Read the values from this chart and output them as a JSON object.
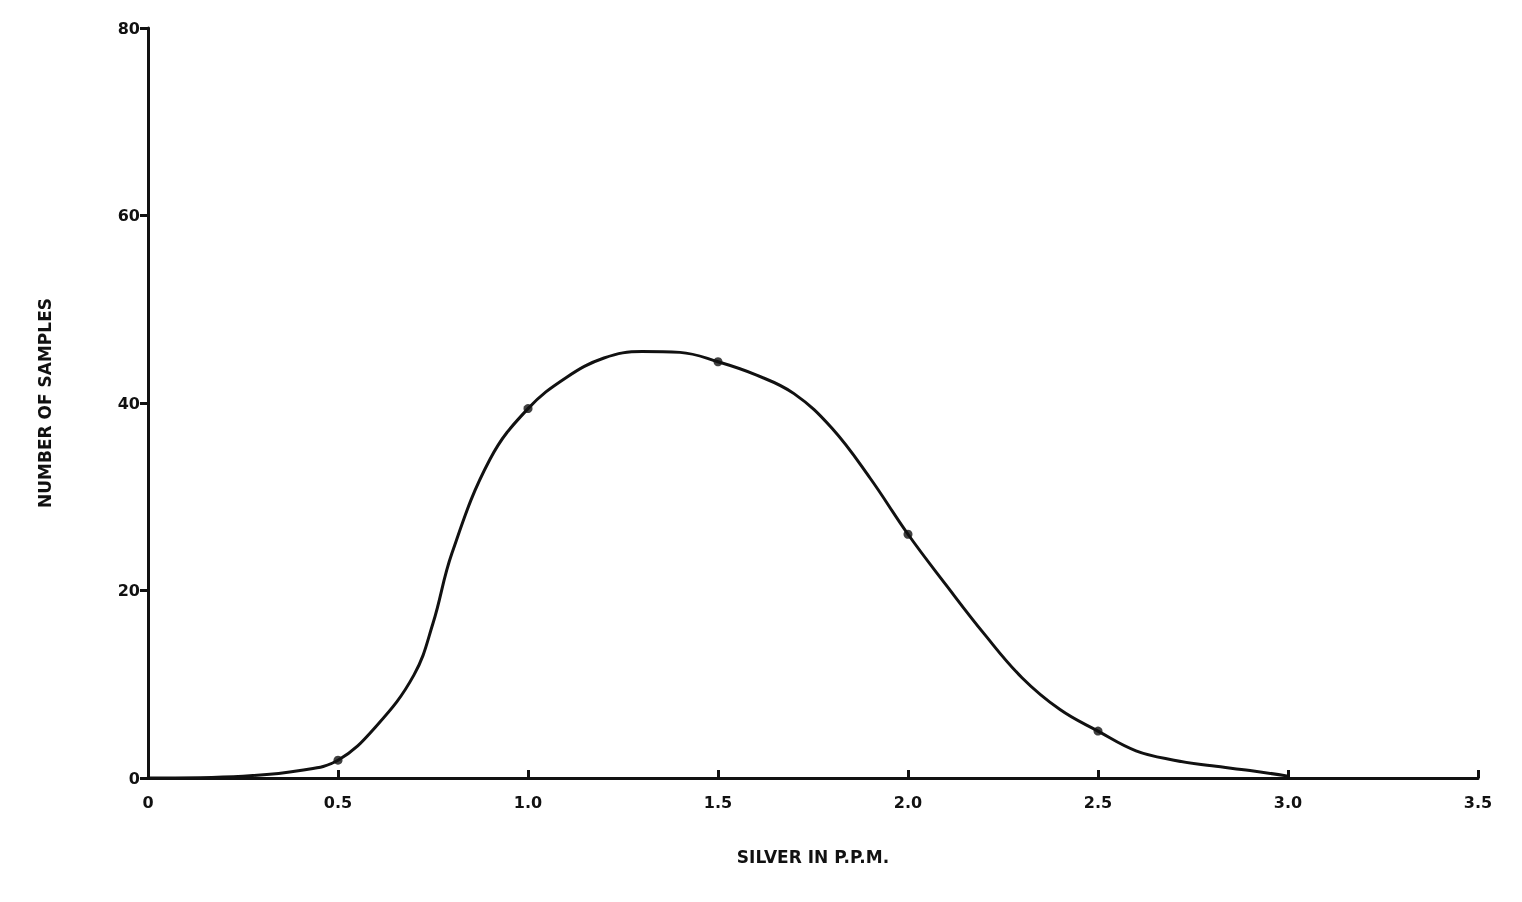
{
  "chart_data": {
    "type": "line",
    "xlabel": "SILVER IN P.P.M.",
    "ylabel": "NUMBER OF SAMPLES",
    "series": [
      {
        "color": "#111111",
        "marker": "none",
        "line_style": "solid",
        "x": [
          0,
          0.25,
          0.4,
          0.5,
          0.6,
          0.7,
          0.75,
          0.8,
          0.9,
          1.0,
          1.1,
          1.2,
          1.3,
          1.4,
          1.5,
          1.6,
          1.7,
          1.8,
          1.9,
          2.0,
          2.1,
          2.2,
          2.3,
          2.4,
          2.5,
          2.6,
          2.7,
          2.8,
          2.9,
          3.0
        ],
        "values": [
          0,
          0.2,
          0.8,
          1.9,
          5.5,
          11,
          16.5,
          24,
          34,
          39.4,
          42.7,
          44.8,
          45.5,
          45.4,
          44.4,
          43,
          41,
          37.3,
          32,
          26,
          20.6,
          15.4,
          10.7,
          7.3,
          5,
          2.9,
          1.9,
          1.3,
          0.8,
          0.2
        ]
      },
      {
        "type": "scatter",
        "color": "#111111",
        "marker": "circle",
        "x": [
          0.5,
          1.0,
          1.5,
          2.0,
          2.5
        ],
        "values": [
          1.9,
          39.4,
          44.4,
          26,
          5
        ]
      }
    ],
    "xlim": [
      0,
      3.5
    ],
    "xticks": [
      0,
      0.5,
      {
        "value": 1,
        "label": "1.0"
      },
      1.5,
      {
        "value": 2,
        "label": "2.0"
      },
      2.5,
      {
        "value": 3,
        "label": "3.0"
      },
      3.5
    ],
    "ylim": [
      0,
      80
    ],
    "yticks": [
      0,
      20,
      40,
      60,
      80
    ],
    "grid": false
  }
}
